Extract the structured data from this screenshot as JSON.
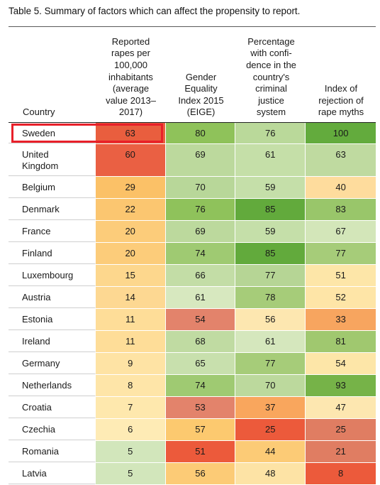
{
  "caption": "Table 5. Summary of factors which can affect the propensity to report.",
  "headers": {
    "country": "Country",
    "col1": "Reported\nrapes per\n100,000\ninhabitants\n(average\nvalue 2013–\n2017)",
    "col2": "Gender\nEquality\nIndex 2015\n(EIGE)",
    "col3": "Percentage\nwith confi-\ndence in the\ncountry's\ncriminal\njustice\nsystem",
    "col4": "Index of\nrejection of\nrape myths"
  },
  "highlight_color": "#e8202a",
  "rows": [
    {
      "country": "Sweden",
      "v1": "63",
      "v2": "80",
      "v3": "76",
      "v4": "100",
      "c": [
        "#ffffff",
        "#e95e3e",
        "#8fc25a",
        "#bad99a",
        "#63ab3d"
      ]
    },
    {
      "country": "United\nKingdom",
      "v1": "60",
      "v2": "69",
      "v3": "61",
      "v4": "63",
      "c": [
        "#ffffff",
        "#ea6043",
        "#bcd99d",
        "#c5df a8",
        "#bfdaa0"
      ]
    },
    {
      "country": "Belgium",
      "v1": "29",
      "v2": "70",
      "v3": "59",
      "v4": "40",
      "c": [
        "#ffffff",
        "#fbc167",
        "#b8d799",
        "#c5dfa9",
        "#fedc9d"
      ]
    },
    {
      "country": "Denmark",
      "v1": "22",
      "v2": "76",
      "v3": "85",
      "v4": "83",
      "c": [
        "#ffffff",
        "#fbc670",
        "#8fc25b",
        "#62aa3c",
        "#99c66a"
      ]
    },
    {
      "country": "France",
      "v1": "20",
      "v2": "69",
      "v3": "59",
      "v4": "67",
      "c": [
        "#ffffff",
        "#fccc7a",
        "#bcd99d",
        "#c5dfa9",
        "#d3e6b9"
      ]
    },
    {
      "country": "Finland",
      "v1": "20",
      "v2": "74",
      "v3": "85",
      "v4": "77",
      "c": [
        "#ffffff",
        "#fccc7a",
        "#9fca72",
        "#62aa3c",
        "#a6cc79"
      ]
    },
    {
      "country": "Luxembourg",
      "v1": "15",
      "v2": "66",
      "v3": "77",
      "v4": "51",
      "c": [
        "#ffffff",
        "#fdd78d",
        "#c3dda6",
        "#b6d595",
        "#fde6a8"
      ]
    },
    {
      "country": "Austria",
      "v1": "14",
      "v2": "61",
      "v3": "78",
      "v4": "52",
      "c": [
        "#ffffff",
        "#fdd892",
        "#d7e8bf",
        "#a6cc79",
        "#fee5a7"
      ]
    },
    {
      "country": "Estonia",
      "v1": "11",
      "v2": "54",
      "v3": "56",
      "v4": "33",
      "c": [
        "#ffffff",
        "#fedd98",
        "#e3836b",
        "#fde7b0",
        "#f7a55f"
      ]
    },
    {
      "country": "Ireland",
      "v1": "11",
      "v2": "68",
      "v3": "61",
      "v4": "81",
      "c": [
        "#ffffff",
        "#fedd98",
        "#c0dba2",
        "#d5e7bd",
        "#a0c86f"
      ]
    },
    {
      "country": "Germany",
      "v1": "9",
      "v2": "65",
      "v3": "77",
      "v4": "54",
      "c": [
        "#ffffff",
        "#fee3a4",
        "#c8e0ad",
        "#a6cc79",
        "#fde6a8"
      ]
    },
    {
      "country": "Netherlands",
      "v1": "8",
      "v2": "74",
      "v3": "70",
      "v4": "93",
      "c": [
        "#ffffff",
        "#fee5a8",
        "#9fca72",
        "#bcd99d",
        "#76b348"
      ]
    },
    {
      "country": "Croatia",
      "v1": "7",
      "v2": "53",
      "v3": "37",
      "v4": "47",
      "c": [
        "#ffffff",
        "#fee8ad",
        "#e3836b",
        "#f9a65d",
        "#fde7b0"
      ]
    },
    {
      "country": "Czechia",
      "v1": "6",
      "v2": "57",
      "v3": "25",
      "v4": "25",
      "c": [
        "#ffffff",
        "#feebb5",
        "#fcc96f",
        "#ec5a3b",
        "#e07d62"
      ]
    },
    {
      "country": "Romania",
      "v1": "5",
      "v2": "51",
      "v3": "44",
      "v4": "21",
      "c": [
        "#ffffff",
        "#d2e6bb",
        "#ec5a3b",
        "#fccb76",
        "#e07d62"
      ]
    },
    {
      "country": "Latvia",
      "v1": "5",
      "v2": "56",
      "v3": "48",
      "v4": "8",
      "c": [
        "#ffffff",
        "#d2e6bb",
        "#fccb76",
        "#fde3a5",
        "#ec5a3b"
      ]
    }
  ]
}
